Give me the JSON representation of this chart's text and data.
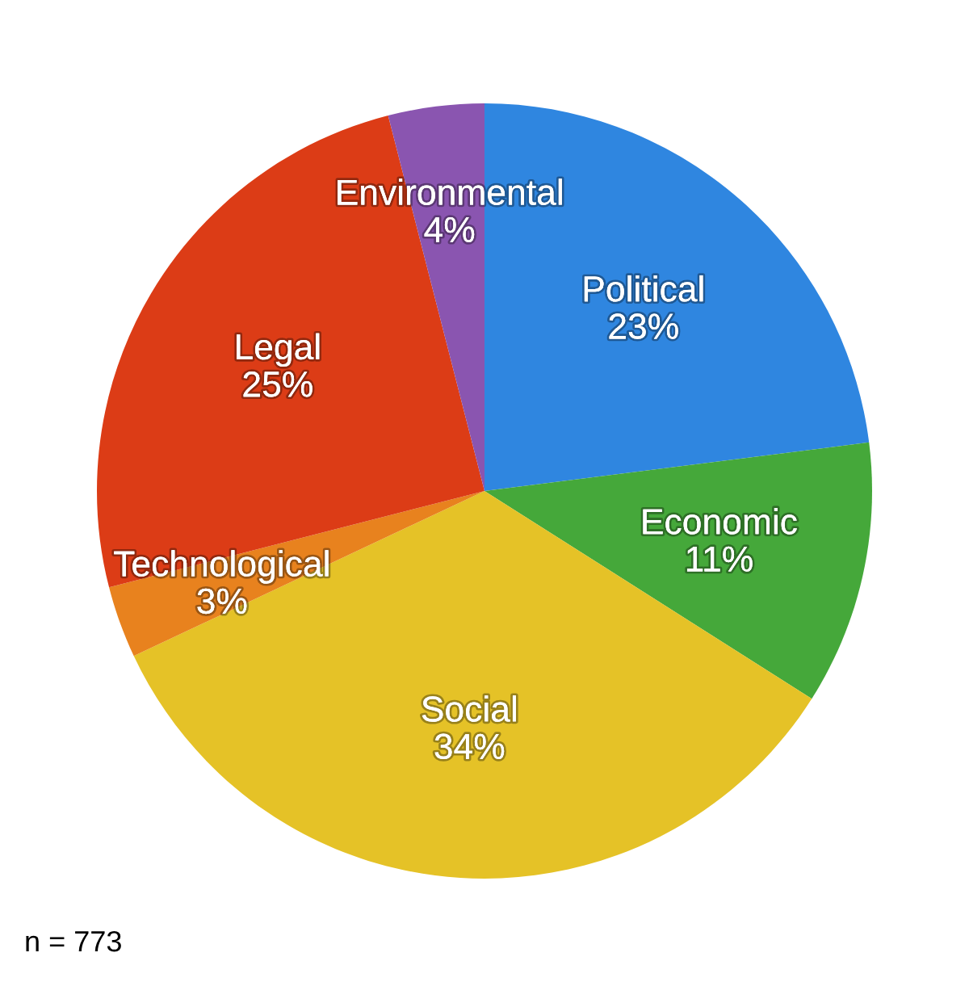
{
  "chart_data": {
    "type": "pie",
    "categories": [
      "Political",
      "Economic",
      "Social",
      "Technological",
      "Legal",
      "Environmental"
    ],
    "values": [
      23,
      11,
      34,
      3,
      25,
      4
    ],
    "colors": [
      "#2f86e0",
      "#45a83a",
      "#e5c227",
      "#e8821e",
      "#dc3c16",
      "#8a55b0"
    ],
    "value_labels": [
      "23%",
      "11%",
      "34%",
      "3%",
      "25%",
      "4%"
    ],
    "annotations": [
      "n = 773"
    ],
    "legend": false
  }
}
